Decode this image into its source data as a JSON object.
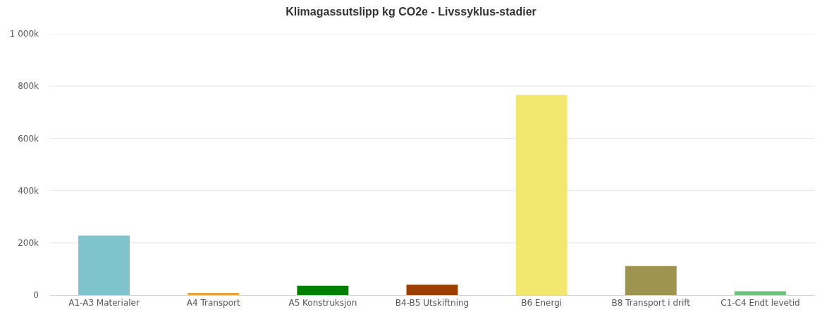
{
  "chart_data": {
    "type": "bar",
    "title": "Klimagassutslipp kg CO2e - Livssyklus-stadier",
    "categories": [
      "A1-A3 Materialer",
      "A4 Transport",
      "A5 Konstruksjon",
      "B4-B5 Utskiftning",
      "B6 Energi",
      "B8 Transport i drift",
      "C1-C4 Endt levetid"
    ],
    "values": [
      228000,
      8000,
      36000,
      40000,
      766000,
      111000,
      15000
    ],
    "colors": [
      "#7fc4cc",
      "#e8a23a",
      "#008000",
      "#9c3f00",
      "#f2e870",
      "#9e9450",
      "#6cc17c"
    ],
    "ylim": [
      0,
      1000000
    ],
    "yticks": [
      {
        "value": 0,
        "label": "0"
      },
      {
        "value": 200000,
        "label": "200k"
      },
      {
        "value": 400000,
        "label": "400k"
      },
      {
        "value": 600000,
        "label": "600k"
      },
      {
        "value": 800000,
        "label": "800k"
      },
      {
        "value": 1000000,
        "label": "1 000k"
      }
    ],
    "grid": "y"
  }
}
